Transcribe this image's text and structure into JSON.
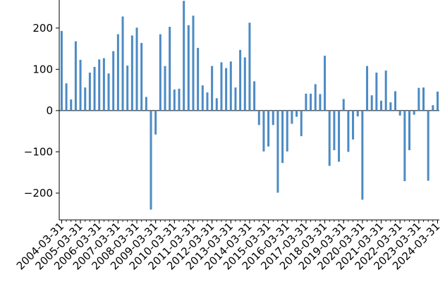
{
  "chart_data": {
    "type": "bar",
    "title": "",
    "xlabel": "",
    "ylabel": "",
    "ylim": [
      -265,
      268
    ],
    "yticks": [
      -200,
      -100,
      0,
      100,
      200
    ],
    "bar_color": "#4c8ac4",
    "grid": false,
    "zero_line": true,
    "x_tick_labels": [
      "2004-03-31",
      "2005-03-31",
      "2006-03-31",
      "2007-03-31",
      "2008-03-31",
      "2009-03-31",
      "2010-03-31",
      "2011-03-31",
      "2012-03-31",
      "2013-03-31",
      "2014-03-31",
      "2015-03-31",
      "2016-03-31",
      "2017-03-31",
      "2018-03-31",
      "2019-03-31",
      "2020-03-31",
      "2021-03-31",
      "2022-03-31",
      "2023-03-31",
      "2024-03-31"
    ],
    "categories": [
      "2004-03-31",
      "2004-06-30",
      "2004-09-30",
      "2004-12-31",
      "2005-03-31",
      "2005-06-30",
      "2005-09-30",
      "2005-12-31",
      "2006-03-31",
      "2006-06-30",
      "2006-09-30",
      "2006-12-31",
      "2007-03-31",
      "2007-06-30",
      "2007-09-30",
      "2007-12-31",
      "2008-03-31",
      "2008-06-30",
      "2008-09-30",
      "2008-12-31",
      "2009-03-31",
      "2009-06-30",
      "2009-09-30",
      "2009-12-31",
      "2010-03-31",
      "2010-06-30",
      "2010-09-30",
      "2010-12-31",
      "2011-03-31",
      "2011-06-30",
      "2011-09-30",
      "2011-12-31",
      "2012-03-31",
      "2012-06-30",
      "2012-09-30",
      "2012-12-31",
      "2013-03-31",
      "2013-06-30",
      "2013-09-30",
      "2013-12-31",
      "2014-03-31",
      "2014-06-30",
      "2014-09-30",
      "2014-12-31",
      "2015-03-31",
      "2015-06-30",
      "2015-09-30",
      "2015-12-31",
      "2016-03-31",
      "2016-06-30",
      "2016-09-30",
      "2016-12-31",
      "2017-03-31",
      "2017-06-30",
      "2017-09-30",
      "2017-12-31",
      "2018-03-31",
      "2018-06-30",
      "2018-09-30",
      "2018-12-31",
      "2019-03-31",
      "2019-06-30",
      "2019-09-30",
      "2019-12-31",
      "2020-03-31",
      "2020-06-30",
      "2020-09-30",
      "2020-12-31",
      "2021-03-31",
      "2021-06-30",
      "2021-09-30",
      "2021-12-31",
      "2022-03-31",
      "2022-06-30",
      "2022-09-30",
      "2022-12-31",
      "2023-03-31",
      "2023-06-30",
      "2023-09-30",
      "2023-12-31",
      "2024-03-31"
    ],
    "values": [
      193,
      66,
      27,
      168,
      123,
      56,
      92,
      106,
      124,
      127,
      90,
      144,
      185,
      228,
      109,
      182,
      201,
      164,
      33,
      -240,
      -58,
      185,
      108,
      203,
      51,
      53,
      266,
      207,
      230,
      152,
      61,
      44,
      108,
      30,
      117,
      103,
      119,
      56,
      147,
      129,
      213,
      71,
      -35,
      -99,
      -87,
      -35,
      -199,
      -127,
      -99,
      -32,
      -15,
      -62,
      41,
      41,
      64,
      40,
      133,
      -134,
      -96,
      -124,
      28,
      -100,
      -70,
      -14,
      -216,
      108,
      37,
      92,
      24,
      97,
      20,
      47,
      -12,
      -171,
      -96,
      -10,
      55,
      56,
      -170,
      13,
      46
    ]
  }
}
